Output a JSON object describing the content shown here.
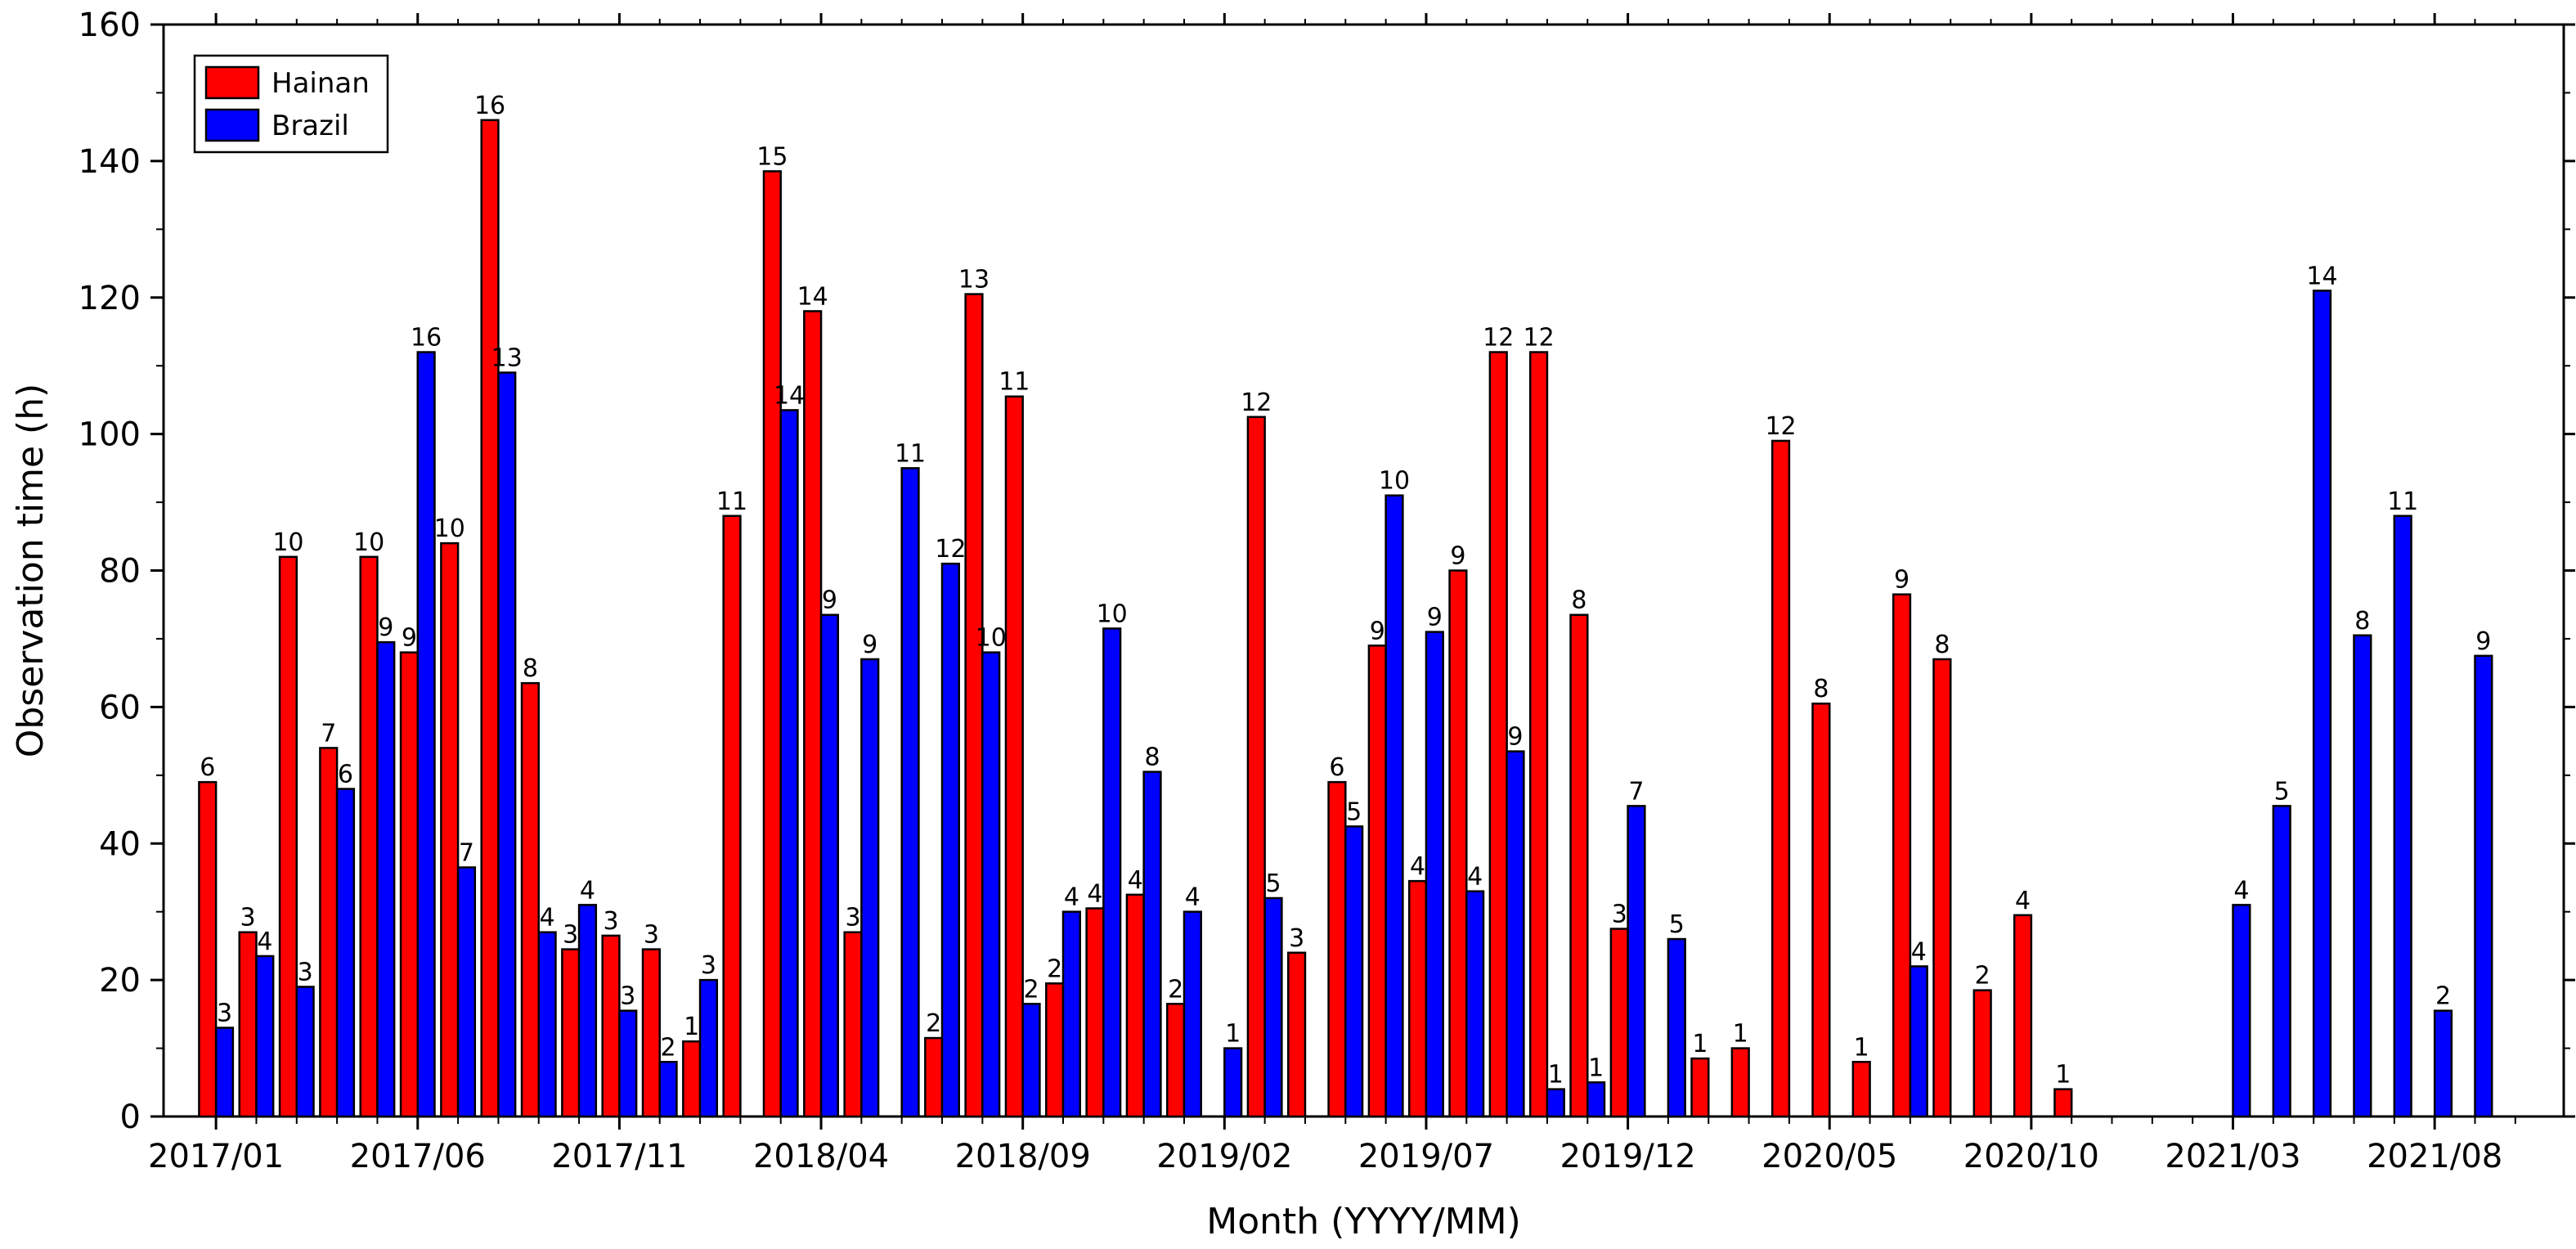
{
  "chart_data": {
    "type": "bar",
    "xlabel": "Month (YYYY/MM)",
    "ylabel": "Observation time (h)",
    "ylim": [
      0,
      160
    ],
    "yticks": [
      0,
      20,
      40,
      60,
      80,
      100,
      120,
      140,
      160
    ],
    "grid": false,
    "legend_position": "top-left",
    "months": [
      "2017/01",
      "2017/02",
      "2017/03",
      "2017/04",
      "2017/05",
      "2017/06",
      "2017/07",
      "2017/08",
      "2017/09",
      "2017/10",
      "2017/11",
      "2017/12",
      "2018/01",
      "2018/02",
      "2018/03",
      "2018/04",
      "2018/05",
      "2018/06",
      "2018/07",
      "2018/08",
      "2018/09",
      "2018/10",
      "2018/11",
      "2018/12",
      "2019/01",
      "2019/02",
      "2019/03",
      "2019/04",
      "2019/05",
      "2019/06",
      "2019/07",
      "2019/08",
      "2019/09",
      "2019/10",
      "2019/11",
      "2019/12",
      "2020/01",
      "2020/02",
      "2020/03",
      "2020/04",
      "2020/05",
      "2020/06",
      "2020/07",
      "2020/08",
      "2020/09",
      "2020/10",
      "2020/11",
      "2020/12",
      "2021/01",
      "2021/02",
      "2021/03",
      "2021/04",
      "2021/05",
      "2021/06",
      "2021/07",
      "2021/08",
      "2021/09",
      "2021/10"
    ],
    "x_tick_labels": [
      "2017/01",
      "2017/06",
      "2017/11",
      "2018/04",
      "2018/09",
      "2019/02",
      "2019/07",
      "2019/12",
      "2020/05",
      "2020/10",
      "2021/03",
      "2021/08"
    ],
    "series": [
      {
        "name": "Hainan",
        "color": "#ff0000",
        "values": [
          49,
          27,
          82,
          54,
          82,
          68,
          84,
          146,
          63.5,
          24.5,
          26.5,
          24.5,
          11,
          88,
          138.5,
          118,
          27,
          null,
          11.5,
          120.5,
          105.5,
          19.5,
          30.5,
          32.5,
          16.5,
          null,
          102.5,
          24,
          49,
          69,
          34.5,
          80,
          112,
          112,
          73.5,
          27.5,
          null,
          8.5,
          10,
          99,
          60.5,
          8,
          76.5,
          67,
          18.5,
          29.5,
          4,
          null,
          null,
          null,
          null,
          null,
          null,
          null,
          null,
          null,
          null,
          null
        ],
        "labels": [
          "6",
          "3",
          "10",
          "7",
          "10",
          "9",
          "10",
          "16",
          "8",
          "3",
          "3",
          "3",
          "1",
          "11",
          "15",
          "14",
          "3",
          "",
          "2",
          "13",
          "11",
          "2",
          "4",
          "4",
          "2",
          "",
          "12",
          "3",
          "6",
          "9",
          "4",
          "9",
          "12",
          "12",
          "8",
          "3",
          "",
          "1",
          "1",
          "12",
          "8",
          "1",
          "9",
          "8",
          "2",
          "4",
          "1",
          "",
          "",
          "",
          "",
          "",
          "",
          "",
          "",
          "",
          "",
          ""
        ]
      },
      {
        "name": "Brazil",
        "color": "#0000ff",
        "values": [
          13,
          23.5,
          19,
          48,
          69.5,
          112,
          36.5,
          109,
          27,
          31,
          15.5,
          8,
          20,
          null,
          103.5,
          73.5,
          67,
          95,
          81,
          68,
          16.5,
          30,
          71.5,
          50.5,
          30,
          10,
          32,
          null,
          42.5,
          91,
          71,
          33,
          53.5,
          4,
          5,
          45.5,
          26,
          null,
          null,
          null,
          null,
          null,
          22,
          null,
          null,
          null,
          null,
          null,
          null,
          null,
          31,
          45.5,
          121,
          70.5,
          88,
          15.5,
          67.5,
          null
        ],
        "labels": [
          "3",
          "4",
          "3",
          "6",
          "9",
          "16",
          "7",
          "13",
          "4",
          "4",
          "3",
          "2",
          "3",
          "",
          "14",
          "9",
          "9",
          "11",
          "12",
          "10",
          "2",
          "4",
          "10",
          "8",
          "4",
          "1",
          "5",
          "",
          "5",
          "10",
          "9",
          "4",
          "9",
          "1",
          "1",
          "7",
          "5",
          "",
          "",
          "",
          "",
          "",
          "4",
          "",
          "",
          "",
          "",
          "",
          "",
          "",
          "4",
          "5",
          "14",
          "8",
          "11",
          "2",
          "9",
          ""
        ]
      }
    ]
  }
}
